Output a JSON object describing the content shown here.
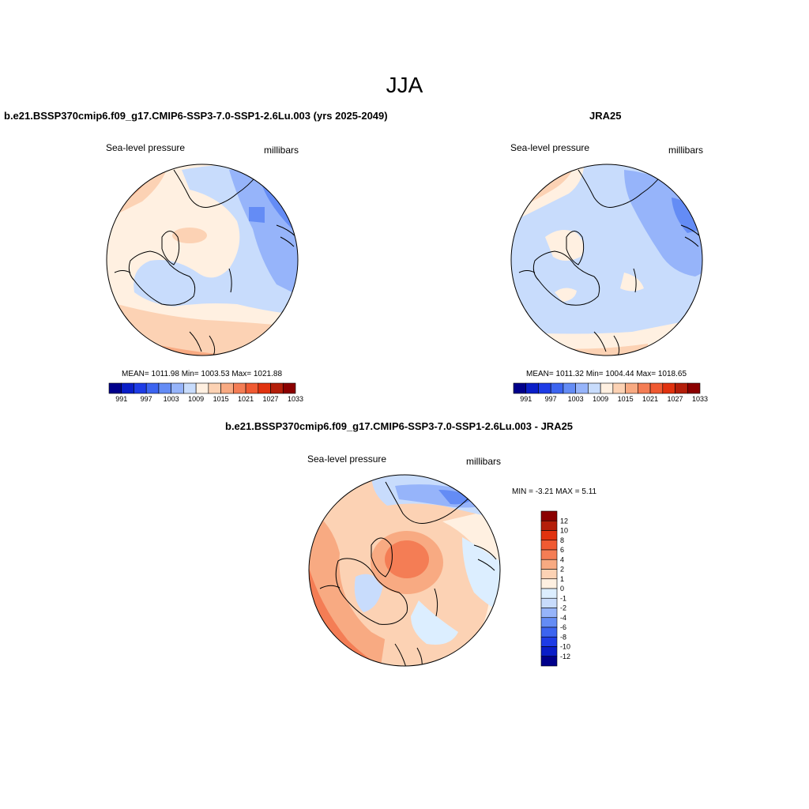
{
  "figure": {
    "title": "JJA"
  },
  "panels": [
    {
      "id": "model",
      "title": "b.e21.BSSP370cmip6.f09_g17.CMIP6-SSP3-7.0-SSP1-2.6Lu.003 (yrs 2025-2049)",
      "variable": "Sea-level pressure",
      "units": "millibars",
      "stats": "MEAN= 1011.98  Min= 1003.53  Max= 1021.88"
    },
    {
      "id": "obs",
      "title": "JRA25",
      "variable": "Sea-level pressure",
      "units": "millibars",
      "stats": "MEAN= 1011.32  Min= 1004.44  Max= 1018.65"
    },
    {
      "id": "diff",
      "title": "b.e21.BSSP370cmip6.f09_g17.CMIP6-SSP3-7.0-SSP1-2.6Lu.003 - JRA25",
      "variable": "Sea-level pressure",
      "units": "millibars",
      "stats": "MIN =  -3.21 MAX =   5.11"
    }
  ],
  "colorbars": {
    "absolute": {
      "colors": [
        "#00008b",
        "#0a1ec8",
        "#1e3ce6",
        "#3c64f0",
        "#648cf5",
        "#96b4fa",
        "#c8dcfc",
        "#fff0e1",
        "#fcd2b4",
        "#f8aa82",
        "#f47d55",
        "#f05a32",
        "#e1320f",
        "#b41e0a",
        "#8b0000"
      ],
      "labels": [
        "991",
        "997",
        "1003",
        "1009",
        "1015",
        "1021",
        "1027",
        "1033"
      ]
    },
    "difference": {
      "colors": [
        "#00008b",
        "#0a1ec8",
        "#1e3ce6",
        "#3c64f0",
        "#648cf5",
        "#96b4fa",
        "#c8dcfc",
        "#dceeff",
        "#fff0e1",
        "#fcd2b4",
        "#f8aa82",
        "#f47d55",
        "#f05a32",
        "#e1320f",
        "#b41e0a",
        "#8b0000"
      ],
      "labels": [
        "-12",
        "-10",
        "-8",
        "-6",
        "-4",
        "-2",
        "-1",
        "0",
        "1",
        "2",
        "4",
        "6",
        "8",
        "10",
        "12"
      ]
    }
  }
}
